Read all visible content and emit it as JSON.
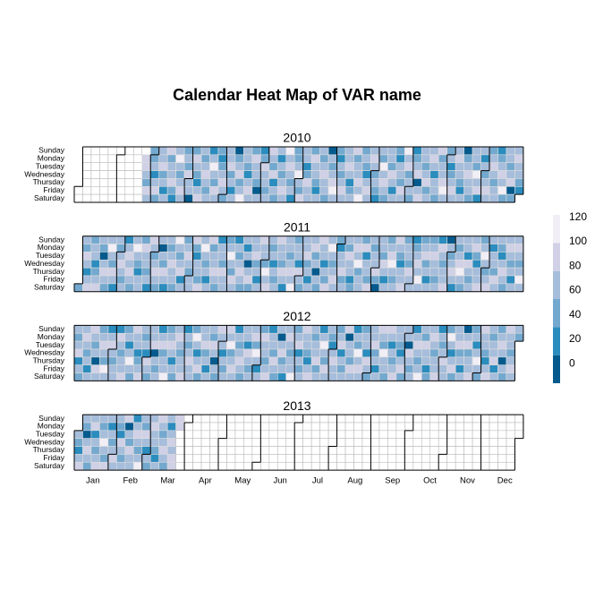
{
  "chart_data": {
    "type": "calendar-heatmap",
    "title": "Calendar Heat Map of VAR name",
    "weekdays": [
      "Sunday",
      "Monday",
      "Tuesday",
      "Wednesday",
      "Thursday",
      "Friday",
      "Saturday"
    ],
    "months": [
      "Jan",
      "Feb",
      "Mar",
      "Apr",
      "May",
      "Jun",
      "Jul",
      "Aug",
      "Sep",
      "Oct",
      "Nov",
      "Dec"
    ],
    "colors": [
      "#045a8d",
      "#2b8cbe",
      "#74a9cf",
      "#a6bddb",
      "#d0d1e6",
      "#f1eef6"
    ],
    "breaks": [
      -16,
      7,
      30,
      53,
      76,
      99,
      122
    ],
    "ylim": [
      -16,
      122
    ],
    "yticks": [
      0,
      20,
      40,
      60,
      80,
      100,
      120
    ],
    "years": [
      {
        "year": 2010,
        "values": [
          null,
          null,
          null,
          null,
          null,
          null,
          null,
          null,
          null,
          null,
          null,
          null,
          null,
          null,
          null,
          null,
          null,
          null,
          null,
          null,
          null,
          null,
          null,
          null,
          null,
          null,
          null,
          null,
          null,
          null,
          null,
          null,
          null,
          null,
          null,
          null,
          null,
          null,
          null,
          null,
          null,
          null,
          null,
          null,
          null,
          null,
          null,
          null,
          null,
          null,
          null,
          null,
          80,
          80,
          60,
          40,
          80,
          60,
          40,
          40,
          60,
          20,
          60,
          80,
          40,
          60,
          60,
          80,
          40,
          60,
          20,
          60,
          80,
          40,
          60,
          60,
          80,
          40,
          20,
          60,
          110,
          60,
          40,
          60,
          80,
          60,
          40,
          60,
          40,
          80,
          60,
          60,
          0,
          40,
          80,
          60,
          40,
          20,
          60,
          80,
          60,
          40,
          60,
          80,
          60,
          40,
          60,
          20,
          60,
          110,
          60,
          40,
          80,
          60,
          40,
          20,
          40,
          60,
          80,
          60,
          40,
          60,
          60,
          80,
          40,
          60,
          20,
          60,
          0,
          40,
          60,
          80,
          40,
          60,
          110,
          60,
          60,
          40,
          20,
          60,
          80,
          60,
          40,
          80,
          60,
          60,
          40,
          0,
          60,
          20,
          40,
          80,
          60,
          60,
          40,
          60,
          80,
          60,
          40,
          80,
          20,
          60,
          40,
          60,
          20,
          60,
          40,
          60,
          80,
          60,
          110,
          60,
          80,
          60,
          40,
          60,
          20,
          40,
          40,
          60,
          110,
          60,
          40,
          80,
          60,
          60,
          20,
          40,
          80,
          60,
          60,
          40,
          80,
          60,
          60,
          40,
          20,
          60,
          60,
          40,
          60,
          80,
          60,
          60,
          40,
          0,
          60,
          40,
          60,
          80,
          110,
          60,
          40,
          20,
          60,
          40,
          60,
          80,
          60,
          60,
          60,
          80,
          60,
          20,
          40,
          60,
          80,
          40,
          60,
          60,
          80,
          60,
          110,
          40,
          60,
          40,
          20,
          60,
          80,
          60,
          60,
          80,
          60,
          40,
          60,
          40,
          20,
          60,
          40,
          110,
          60,
          80,
          60,
          40,
          60,
          60,
          40,
          80,
          60,
          20,
          60,
          40,
          20,
          60,
          60,
          40,
          80,
          60,
          110,
          60,
          80,
          40,
          60,
          60,
          40,
          20,
          40,
          60,
          80,
          0,
          60,
          80,
          60,
          60,
          40,
          60,
          80,
          40,
          60,
          60,
          80,
          60,
          20,
          60,
          60,
          40,
          80,
          40,
          60,
          60,
          80,
          110,
          60,
          40,
          60,
          20,
          40,
          60,
          80,
          60,
          60,
          80,
          60,
          60,
          40,
          20,
          60,
          0,
          40,
          60,
          80,
          60,
          60,
          40,
          60,
          60,
          40,
          110,
          60,
          80,
          20,
          60,
          20,
          60,
          40,
          60,
          80,
          60,
          40,
          60,
          80,
          60,
          40,
          60,
          60,
          20,
          40,
          60,
          80,
          60,
          110,
          40,
          60,
          60,
          40,
          60,
          80,
          0,
          40,
          60,
          80,
          60,
          60,
          40,
          20
        ]
      },
      {
        "year": 2011,
        "values": [
          40,
          60,
          40,
          80,
          60,
          20,
          60,
          80,
          40,
          60,
          60,
          20,
          40,
          60,
          80,
          60,
          40,
          0,
          60,
          80,
          60,
          40,
          60,
          110,
          60,
          40,
          80,
          60,
          20,
          60,
          40,
          60,
          80,
          60,
          40,
          60,
          20,
          60,
          80,
          60,
          80,
          60,
          40,
          60,
          110,
          60,
          40,
          20,
          60,
          60,
          40,
          80,
          60,
          60,
          40,
          60,
          20,
          80,
          60,
          40,
          60,
          80,
          60,
          40,
          60,
          0,
          60,
          40,
          80,
          60,
          20,
          60,
          40,
          60,
          80,
          60,
          60,
          40,
          110,
          60,
          40,
          60,
          80,
          20,
          60,
          40,
          60,
          80,
          60,
          40,
          60,
          60,
          80,
          40,
          20,
          60,
          60,
          40,
          80,
          60,
          110,
          60,
          40,
          60,
          20,
          60,
          80,
          40,
          60,
          60,
          80,
          60,
          40,
          20,
          60,
          60,
          40,
          80,
          60,
          60,
          40,
          60,
          110,
          60,
          40,
          80,
          60,
          20,
          60,
          40,
          60,
          80,
          60,
          40,
          60,
          20,
          60,
          0,
          60,
          80,
          40,
          60,
          60,
          80,
          40,
          60,
          20,
          60,
          80,
          60,
          60,
          40,
          110,
          60,
          80,
          60,
          40,
          60,
          20,
          60,
          40,
          60,
          80,
          60,
          60,
          40,
          80,
          60,
          20,
          60,
          60,
          40,
          60,
          80,
          60,
          110,
          40,
          60,
          60,
          20,
          80,
          60,
          40,
          60,
          60,
          80,
          40,
          60,
          20,
          60,
          60,
          80,
          40,
          60,
          0,
          60,
          40,
          80,
          60,
          60,
          20,
          60,
          40,
          80,
          60,
          110,
          60,
          40,
          60,
          80,
          60,
          40,
          20,
          60,
          60,
          80,
          40,
          60,
          60,
          40,
          80,
          60,
          60,
          20,
          40,
          60,
          80,
          60,
          110,
          40,
          60,
          60,
          40,
          80,
          20,
          60,
          60,
          40,
          80,
          60,
          40,
          60,
          60,
          80,
          40,
          0,
          60,
          60,
          40,
          80,
          60,
          20,
          60,
          40,
          60,
          80,
          110,
          60,
          40,
          60,
          80,
          60,
          40,
          20,
          60,
          60,
          80,
          40,
          60,
          60,
          40,
          80,
          60,
          60,
          20,
          40,
          60,
          80,
          60,
          110,
          60,
          40,
          60,
          80,
          40,
          60,
          20,
          60,
          40,
          60,
          80,
          60,
          60,
          40,
          60,
          20,
          80,
          60,
          40,
          60,
          60,
          80,
          0,
          60,
          40,
          60,
          80,
          60,
          20,
          60,
          40,
          60,
          80,
          110,
          60,
          40,
          60,
          60,
          20,
          80,
          60,
          40,
          60,
          60,
          80,
          40,
          20,
          60,
          60,
          80,
          40,
          60,
          110,
          60,
          40,
          60,
          80,
          60,
          20,
          60,
          60,
          40,
          80,
          60,
          60,
          40,
          20,
          60,
          80,
          60,
          40,
          60,
          80,
          60,
          40,
          60,
          20,
          60,
          60,
          80,
          60,
          40,
          60,
          110,
          60
        ]
      },
      {
        "year": 2012,
        "values": [
          60,
          40,
          60,
          80,
          20,
          60,
          40,
          60,
          80,
          60,
          40,
          60,
          20,
          60,
          80,
          60,
          40,
          60,
          0,
          80,
          60,
          40,
          60,
          80,
          60,
          40,
          110,
          60,
          20,
          60,
          80,
          60,
          40,
          60,
          60,
          20,
          80,
          60,
          40,
          60,
          60,
          80,
          40,
          60,
          20,
          60,
          110,
          60,
          40,
          80,
          60,
          60,
          20,
          40,
          60,
          80,
          60,
          40,
          60,
          20,
          80,
          60,
          40,
          60,
          60,
          80,
          0,
          60,
          40,
          60,
          20,
          60,
          80,
          40,
          60,
          60,
          110,
          40,
          60,
          80,
          60,
          20,
          60,
          40,
          60,
          80,
          60,
          40,
          60,
          60,
          80,
          20,
          60,
          40,
          60,
          80,
          60,
          60,
          40,
          110,
          60,
          20,
          60,
          80,
          40,
          60,
          60,
          80,
          40,
          60,
          20,
          60,
          60,
          40,
          80,
          60,
          0,
          60,
          40,
          80,
          60,
          60,
          20,
          60,
          40,
          60,
          80,
          60,
          110,
          40,
          60,
          80,
          60,
          20,
          60,
          40,
          60,
          80,
          60,
          40,
          60,
          60,
          20,
          80,
          60,
          40,
          60,
          60,
          80,
          40,
          110,
          60,
          20,
          60,
          40,
          80,
          60,
          60,
          40,
          60,
          80,
          20,
          60,
          60,
          40,
          80,
          60,
          40,
          60,
          0,
          60,
          80,
          40,
          60,
          20,
          60,
          80,
          60,
          40,
          60,
          60,
          110,
          40,
          60,
          80,
          20,
          60,
          40,
          60,
          80,
          60,
          60,
          40,
          20,
          60,
          80,
          60,
          40,
          60,
          60,
          80,
          40,
          60,
          20,
          60,
          110,
          60,
          40,
          80,
          60,
          60,
          40,
          20,
          60,
          80,
          60,
          60,
          40,
          60,
          80,
          20,
          60,
          40,
          60,
          80,
          0,
          60,
          60,
          40,
          80,
          60,
          20,
          60,
          40,
          110,
          60,
          80,
          60,
          40,
          60,
          60,
          20,
          80,
          60,
          40,
          60,
          60,
          80,
          40,
          60,
          20,
          60,
          80,
          60,
          40,
          110,
          60,
          60,
          40,
          80,
          60,
          20,
          60,
          40,
          60,
          80,
          60,
          60,
          40,
          20,
          60,
          80,
          40,
          60,
          60,
          0,
          80,
          60,
          40,
          60,
          20,
          60,
          80,
          60,
          40,
          60,
          110,
          60,
          40,
          80,
          60,
          60,
          20,
          40,
          60,
          80,
          60,
          40,
          60,
          60,
          80,
          20,
          60,
          40,
          60,
          80,
          60,
          60,
          40,
          110,
          60,
          20,
          60,
          80,
          40,
          60,
          60,
          80,
          40,
          60,
          20,
          60,
          0,
          60,
          80,
          40,
          60,
          60,
          80,
          40,
          60,
          20,
          60,
          110,
          60,
          40,
          80,
          60,
          60,
          40,
          20,
          60,
          80,
          60,
          40,
          60,
          60,
          80,
          20,
          60,
          40,
          60,
          80,
          60,
          0,
          60,
          40,
          80,
          60,
          60,
          40,
          60,
          80,
          60,
          60,
          40
        ]
      },
      {
        "year": 2013,
        "values": [
          60,
          40,
          20,
          60,
          80,
          60,
          40,
          0,
          60,
          80,
          60,
          40,
          60,
          80,
          20,
          60,
          40,
          60,
          80,
          60,
          40,
          60,
          110,
          60,
          40,
          80,
          60,
          20,
          60,
          40,
          60,
          80,
          60,
          60,
          40,
          20,
          80,
          60,
          40,
          60,
          80,
          0,
          60,
          40,
          80,
          60,
          60,
          20,
          60,
          80,
          60,
          40,
          60,
          110,
          60,
          40,
          80,
          60,
          20,
          60,
          40,
          60,
          80,
          60,
          60,
          40,
          20,
          60,
          80,
          60,
          40,
          60,
          80,
          60,
          40,
          60,
          20,
          60,
          80,
          60,
          80,
          80,
          80,
          80
        ]
      }
    ]
  }
}
